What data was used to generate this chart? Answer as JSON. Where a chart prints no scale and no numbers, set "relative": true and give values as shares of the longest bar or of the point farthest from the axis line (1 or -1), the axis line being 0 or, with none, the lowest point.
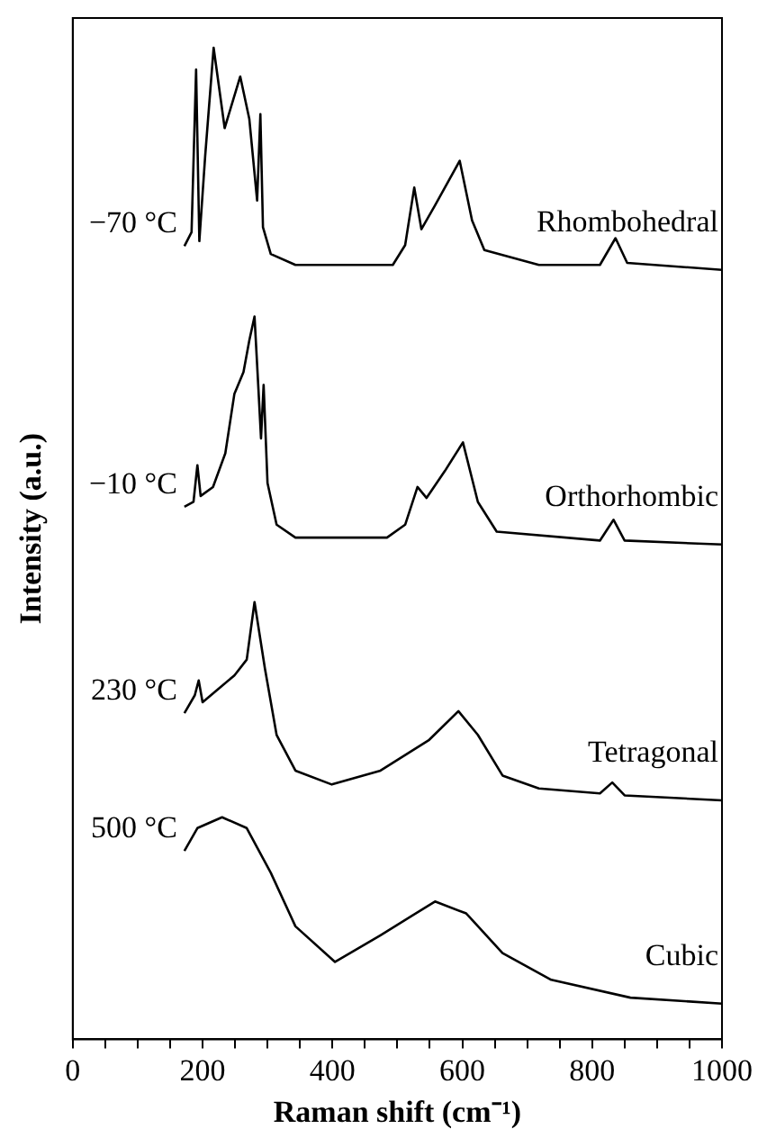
{
  "chart_data": {
    "type": "line",
    "relative": true,
    "xlabel": "Raman shift (cm⁻¹)",
    "ylabel": "Intensity (a.u.)",
    "xlim": [
      0,
      1000
    ],
    "xticks": [
      0,
      {
        "value": 50,
        "label": null
      },
      {
        "value": 100,
        "label": null
      },
      {
        "value": 150,
        "label": null
      },
      200,
      {
        "value": 250,
        "label": null
      },
      {
        "value": 300,
        "label": null
      },
      {
        "value": 350,
        "label": null
      },
      400,
      {
        "value": 450,
        "label": null
      },
      {
        "value": 500,
        "label": null
      },
      {
        "value": 550,
        "label": null
      },
      600,
      {
        "value": 650,
        "label": null
      },
      {
        "value": 700,
        "label": null
      },
      {
        "value": 750,
        "label": null
      },
      800,
      {
        "value": 850,
        "label": null
      },
      {
        "value": 900,
        "label": null
      },
      {
        "value": 950,
        "label": null
      },
      1000
    ],
    "grid": false,
    "legend": false,
    "marker": "none",
    "line_style": "solid",
    "series": [
      {
        "name": "−70 °C",
        "color": "#000000",
        "x": [
          172,
          183,
          190,
          195,
          204,
          217,
          234,
          258,
          272,
          284,
          289,
          293,
          305,
          343,
          493,
          512,
          526,
          537,
          558,
          596,
          615,
          634,
          718,
          812,
          836,
          854,
          1000
        ],
        "values": [
          0.8,
          0.814,
          0.978,
          0.805,
          0.891,
          1.0,
          0.919,
          0.971,
          0.928,
          0.846,
          0.933,
          0.819,
          0.792,
          0.781,
          0.781,
          0.801,
          0.859,
          0.817,
          0.841,
          0.886,
          0.826,
          0.796,
          0.781,
          0.781,
          0.808,
          0.783,
          0.776
        ]
      },
      {
        "name": "−10 °C",
        "color": "#000000",
        "x": [
          172,
          186,
          192,
          197,
          216,
          235,
          249,
          263,
          272,
          280,
          286,
          290,
          294,
          300,
          314,
          343,
          484,
          512,
          531,
          545,
          573,
          601,
          624,
          653,
          812,
          833,
          850,
          1000
        ],
        "values": [
          0.537,
          0.542,
          0.579,
          0.548,
          0.557,
          0.591,
          0.651,
          0.673,
          0.705,
          0.729,
          0.656,
          0.606,
          0.66,
          0.561,
          0.519,
          0.506,
          0.506,
          0.519,
          0.557,
          0.546,
          0.573,
          0.602,
          0.542,
          0.512,
          0.503,
          0.524,
          0.503,
          0.499
        ]
      },
      {
        "name": "230 °C",
        "color": "#000000",
        "x": [
          172,
          188,
          194,
          200,
          249,
          268,
          280,
          296,
          314,
          343,
          399,
          474,
          549,
          594,
          624,
          662,
          718,
          812,
          831,
          850,
          1000
        ],
        "values": [
          0.329,
          0.347,
          0.362,
          0.34,
          0.367,
          0.383,
          0.441,
          0.374,
          0.307,
          0.271,
          0.257,
          0.271,
          0.302,
          0.331,
          0.307,
          0.266,
          0.253,
          0.248,
          0.259,
          0.246,
          0.241
        ]
      },
      {
        "name": "500 °C",
        "color": "#000000",
        "x": [
          172,
          192,
          230,
          268,
          305,
          343,
          404,
          474,
          558,
          606,
          662,
          737,
          859,
          1000
        ],
        "values": [
          0.19,
          0.213,
          0.224,
          0.213,
          0.168,
          0.114,
          0.078,
          0.105,
          0.139,
          0.127,
          0.087,
          0.06,
          0.042,
          0.036
        ]
      }
    ],
    "annotations": [
      "Rhombohedral",
      "Orthorhombic",
      "Tetragonal",
      "Cubic"
    ]
  }
}
